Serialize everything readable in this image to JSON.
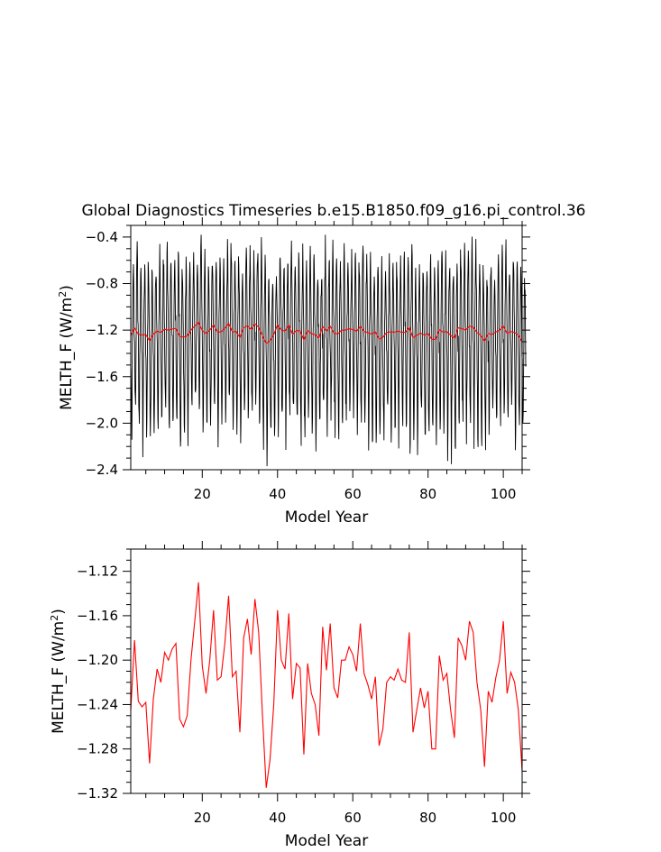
{
  "title": "Global Diagnostics Timeseries b.e15.B1850.f09_g16.pi_control.36",
  "chart_data": [
    {
      "type": "line",
      "xlabel": "Model Year",
      "ylabel": "MELTH_F (W/m",
      "ylabel_sup": "2",
      "ylabel_tail": ")",
      "xlim": [
        1,
        105
      ],
      "ylim": [
        -2.4,
        -0.3
      ],
      "xticks": [
        20,
        40,
        60,
        80,
        100
      ],
      "yticks": [
        -0.4,
        -0.8,
        -1.2,
        -1.6,
        -2.0,
        -2.4
      ],
      "ytick_labels": [
        "-0.4",
        "-0.8",
        "-1.2",
        "-1.6",
        "-2.0",
        "-2.4"
      ],
      "series": [
        {
          "kind": "monthly",
          "color": "#000000",
          "description_note": "monthly values, seasonal cycle between about -2.1 and -0.6",
          "base_x_start": 1.0417,
          "values_per_year": 12,
          "monthly_climatology": [
            -1.4,
            -1.75,
            -2.05,
            -1.95,
            -1.55,
            -1.2,
            -0.95,
            -0.7,
            -0.6,
            -0.75,
            -1.05,
            -1.25
          ]
        },
        {
          "kind": "annual",
          "color": "#ff0000",
          "x": [
            1,
            2,
            3,
            4,
            5,
            6,
            7,
            8,
            9,
            10,
            11,
            12,
            13,
            14,
            15,
            16,
            17,
            18,
            19,
            20,
            21,
            22,
            23,
            24,
            25,
            26,
            27,
            28,
            29,
            30,
            31,
            32,
            33,
            34,
            35,
            36,
            37,
            38,
            39,
            40,
            41,
            42,
            43,
            44,
            45,
            46,
            47,
            48,
            49,
            50,
            51,
            52,
            53,
            54,
            55,
            56,
            57,
            58,
            59,
            60,
            61,
            62,
            63,
            64,
            65,
            66,
            67,
            68,
            69,
            70,
            71,
            72,
            73,
            74,
            75,
            76,
            77,
            78,
            79,
            80,
            81,
            82,
            83,
            84,
            85,
            86,
            87,
            88,
            89,
            90,
            91,
            92,
            93,
            94,
            95,
            96,
            97,
            98,
            99,
            100,
            101,
            102,
            103,
            104,
            105
          ],
          "values": [
            -1.245,
            -1.182,
            -1.237,
            -1.242,
            -1.238,
            -1.293,
            -1.235,
            -1.208,
            -1.22,
            -1.193,
            -1.2,
            -1.19,
            -1.185,
            -1.253,
            -1.26,
            -1.25,
            -1.2,
            -1.165,
            -1.13,
            -1.205,
            -1.23,
            -1.2,
            -1.155,
            -1.218,
            -1.215,
            -1.185,
            -1.142,
            -1.215,
            -1.21,
            -1.265,
            -1.18,
            -1.163,
            -1.195,
            -1.145,
            -1.175,
            -1.25,
            -1.315,
            -1.29,
            -1.24,
            -1.155,
            -1.2,
            -1.208,
            -1.158,
            -1.235,
            -1.203,
            -1.207,
            -1.285,
            -1.203,
            -1.23,
            -1.24,
            -1.268,
            -1.17,
            -1.209,
            -1.167,
            -1.225,
            -1.234,
            -1.2,
            -1.2,
            -1.188,
            -1.195,
            -1.21,
            -1.167,
            -1.212,
            -1.222,
            -1.235,
            -1.215,
            -1.277,
            -1.262,
            -1.22,
            -1.215,
            -1.218,
            -1.208,
            -1.218,
            -1.22,
            -1.175,
            -1.265,
            -1.245,
            -1.225,
            -1.243,
            -1.228,
            -1.28,
            -1.28,
            -1.196,
            -1.218,
            -1.212,
            -1.245,
            -1.27,
            -1.18,
            -1.187,
            -1.2,
            -1.165,
            -1.175,
            -1.22,
            -1.245,
            -1.296,
            -1.228,
            -1.238,
            -1.216,
            -1.2,
            -1.165,
            -1.23,
            -1.211,
            -1.22,
            -1.245,
            -1.3
          ]
        }
      ]
    },
    {
      "type": "line",
      "xlabel": "Model Year",
      "ylabel": "MELTH_F (W/m",
      "ylabel_sup": "2",
      "ylabel_tail": ")",
      "xlim": [
        1,
        105
      ],
      "ylim": [
        -1.32,
        -1.1
      ],
      "xticks": [
        20,
        40,
        60,
        80,
        100
      ],
      "yticks": [
        -1.12,
        -1.16,
        -1.2,
        -1.24,
        -1.28,
        -1.32
      ],
      "ytick_labels": [
        "-1.12",
        "-1.16",
        "-1.20",
        "-1.24",
        "-1.28",
        "-1.32"
      ],
      "series": [
        {
          "kind": "annual",
          "color": "#ff0000",
          "x": [
            1,
            2,
            3,
            4,
            5,
            6,
            7,
            8,
            9,
            10,
            11,
            12,
            13,
            14,
            15,
            16,
            17,
            18,
            19,
            20,
            21,
            22,
            23,
            24,
            25,
            26,
            27,
            28,
            29,
            30,
            31,
            32,
            33,
            34,
            35,
            36,
            37,
            38,
            39,
            40,
            41,
            42,
            43,
            44,
            45,
            46,
            47,
            48,
            49,
            50,
            51,
            52,
            53,
            54,
            55,
            56,
            57,
            58,
            59,
            60,
            61,
            62,
            63,
            64,
            65,
            66,
            67,
            68,
            69,
            70,
            71,
            72,
            73,
            74,
            75,
            76,
            77,
            78,
            79,
            80,
            81,
            82,
            83,
            84,
            85,
            86,
            87,
            88,
            89,
            90,
            91,
            92,
            93,
            94,
            95,
            96,
            97,
            98,
            99,
            100,
            101,
            102,
            103,
            104,
            105
          ],
          "values": [
            -1.245,
            -1.182,
            -1.237,
            -1.242,
            -1.238,
            -1.293,
            -1.235,
            -1.208,
            -1.22,
            -1.193,
            -1.2,
            -1.19,
            -1.185,
            -1.253,
            -1.26,
            -1.25,
            -1.2,
            -1.165,
            -1.13,
            -1.205,
            -1.23,
            -1.2,
            -1.155,
            -1.218,
            -1.215,
            -1.185,
            -1.142,
            -1.215,
            -1.21,
            -1.265,
            -1.18,
            -1.163,
            -1.195,
            -1.145,
            -1.175,
            -1.25,
            -1.315,
            -1.29,
            -1.24,
            -1.155,
            -1.2,
            -1.208,
            -1.158,
            -1.235,
            -1.203,
            -1.207,
            -1.285,
            -1.203,
            -1.23,
            -1.24,
            -1.268,
            -1.17,
            -1.209,
            -1.167,
            -1.225,
            -1.234,
            -1.2,
            -1.2,
            -1.188,
            -1.195,
            -1.21,
            -1.167,
            -1.212,
            -1.222,
            -1.235,
            -1.215,
            -1.277,
            -1.262,
            -1.22,
            -1.215,
            -1.218,
            -1.208,
            -1.218,
            -1.22,
            -1.175,
            -1.265,
            -1.245,
            -1.225,
            -1.243,
            -1.228,
            -1.28,
            -1.28,
            -1.196,
            -1.218,
            -1.212,
            -1.245,
            -1.27,
            -1.18,
            -1.187,
            -1.2,
            -1.165,
            -1.175,
            -1.22,
            -1.245,
            -1.296,
            -1.228,
            -1.238,
            -1.216,
            -1.2,
            -1.165,
            -1.23,
            -1.211,
            -1.22,
            -1.245,
            -1.3
          ]
        }
      ]
    }
  ]
}
